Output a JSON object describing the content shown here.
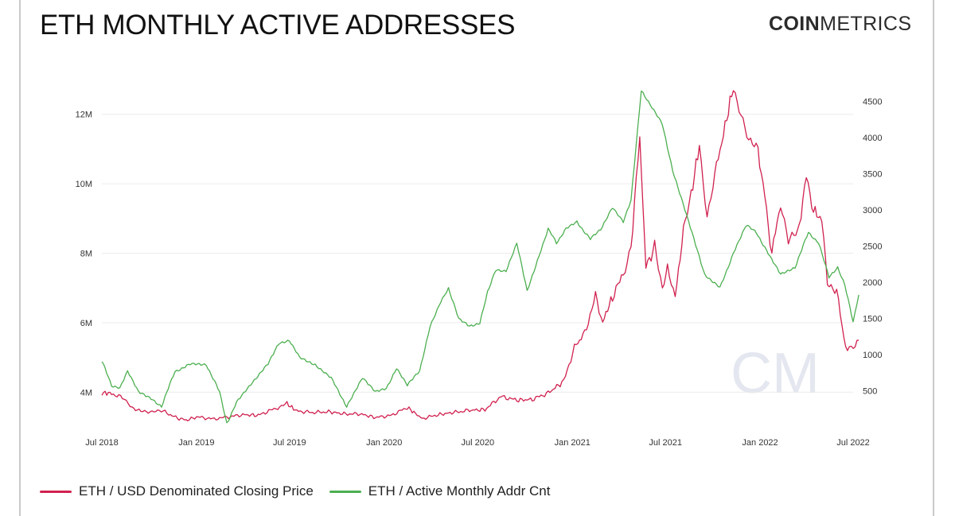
{
  "title": "ETH MONTHLY ACTIVE ADDRESSES",
  "brand": {
    "bold": "COIN",
    "light": "METRICS"
  },
  "watermark": "CM",
  "legend": {
    "price_label": "ETH / USD Denominated Closing Price",
    "addr_label": "ETH / Active Monthly Addr Cnt"
  },
  "colors": {
    "price": "#d0214f",
    "addresses": "#4caf50",
    "grid": "#ececec",
    "watermark": "#e4e7ef"
  },
  "chart_data": {
    "type": "line",
    "title": "ETH MONTHLY ACTIVE ADDRESSES",
    "xlabel": "",
    "x_ticks": [
      "Jul 2018",
      "Jan 2019",
      "Jul 2019",
      "Jan 2020",
      "Jul 2020",
      "Jan 2021",
      "Jul 2021",
      "Jan 2022",
      "Jul 2022"
    ],
    "y_left": {
      "ticks": [
        "4M",
        "6M",
        "8M",
        "10M",
        "12M"
      ],
      "tick_values": [
        4000000,
        6000000,
        8000000,
        10000000,
        12000000
      ],
      "range": [
        3000000,
        13000000
      ]
    },
    "y_right": {
      "ticks": [
        "500",
        "1000",
        "1500",
        "2000",
        "2500",
        "3000",
        "3500",
        "4000",
        "4500"
      ],
      "tick_values": [
        500,
        1000,
        1500,
        2000,
        2500,
        3000,
        3500,
        4000,
        4500
      ],
      "range": [
        0,
        4800
      ]
    },
    "grid": true,
    "legend_position": "bottom-left",
    "series": [
      {
        "name": "ETH / USD Denominated Closing Price",
        "axis": "right",
        "color": "#d0214f",
        "points": [
          [
            "2018-07-01",
            470
          ],
          [
            "2018-07-20",
            465
          ],
          [
            "2018-08-10",
            400
          ],
          [
            "2018-08-25",
            290
          ],
          [
            "2018-09-15",
            210
          ],
          [
            "2018-10-10",
            220
          ],
          [
            "2018-11-01",
            205
          ],
          [
            "2018-11-25",
            120
          ],
          [
            "2018-12-15",
            95
          ],
          [
            "2019-01-01",
            140
          ],
          [
            "2019-02-01",
            110
          ],
          [
            "2019-03-01",
            135
          ],
          [
            "2019-04-01",
            170
          ],
          [
            "2019-05-01",
            160
          ],
          [
            "2019-06-01",
            250
          ],
          [
            "2019-06-26",
            320
          ],
          [
            "2019-07-15",
            220
          ],
          [
            "2019-08-15",
            200
          ],
          [
            "2019-09-15",
            210
          ],
          [
            "2019-10-15",
            180
          ],
          [
            "2019-11-15",
            180
          ],
          [
            "2019-12-15",
            130
          ],
          [
            "2020-01-15",
            160
          ],
          [
            "2020-02-15",
            270
          ],
          [
            "2020-03-15",
            115
          ],
          [
            "2020-04-15",
            170
          ],
          [
            "2020-05-15",
            200
          ],
          [
            "2020-06-15",
            230
          ],
          [
            "2020-07-15",
            240
          ],
          [
            "2020-08-15",
            420
          ],
          [
            "2020-09-15",
            370
          ],
          [
            "2020-10-15",
            380
          ],
          [
            "2020-11-15",
            470
          ],
          [
            "2020-12-15",
            630
          ],
          [
            "2021-01-05",
            1100
          ],
          [
            "2021-01-25",
            1300
          ],
          [
            "2021-02-15",
            1800
          ],
          [
            "2021-03-01",
            1450
          ],
          [
            "2021-03-20",
            1800
          ],
          [
            "2021-04-10",
            2100
          ],
          [
            "2021-04-25",
            2500
          ],
          [
            "2021-05-12",
            4000
          ],
          [
            "2021-05-24",
            2200
          ],
          [
            "2021-06-10",
            2500
          ],
          [
            "2021-06-25",
            1850
          ],
          [
            "2021-07-05",
            2250
          ],
          [
            "2021-07-20",
            1800
          ],
          [
            "2021-08-05",
            2700
          ],
          [
            "2021-08-20",
            3200
          ],
          [
            "2021-09-05",
            3900
          ],
          [
            "2021-09-20",
            2900
          ],
          [
            "2021-10-05",
            3500
          ],
          [
            "2021-10-25",
            4150
          ],
          [
            "2021-11-10",
            4700
          ],
          [
            "2021-11-25",
            4350
          ],
          [
            "2021-12-10",
            4000
          ],
          [
            "2021-12-28",
            3800
          ],
          [
            "2022-01-10",
            3200
          ],
          [
            "2022-01-24",
            2400
          ],
          [
            "2022-02-10",
            3100
          ],
          [
            "2022-02-25",
            2600
          ],
          [
            "2022-03-15",
            2650
          ],
          [
            "2022-04-01",
            3450
          ],
          [
            "2022-04-15",
            3000
          ],
          [
            "2022-05-01",
            2850
          ],
          [
            "2022-05-12",
            2000
          ],
          [
            "2022-05-30",
            1900
          ],
          [
            "2022-06-13",
            1200
          ],
          [
            "2022-06-20",
            1100
          ],
          [
            "2022-07-05",
            1150
          ],
          [
            "2022-07-12",
            1200
          ]
        ]
      },
      {
        "name": "ETH / Active Monthly Addr Cnt",
        "axis": "left",
        "color": "#4caf50",
        "points": [
          [
            "2018-07-01",
            4900000
          ],
          [
            "2018-07-20",
            4200000
          ],
          [
            "2018-08-05",
            4100000
          ],
          [
            "2018-08-20",
            4600000
          ],
          [
            "2018-09-10",
            4000000
          ],
          [
            "2018-10-05",
            3800000
          ],
          [
            "2018-10-25",
            3600000
          ],
          [
            "2018-11-20",
            4600000
          ],
          [
            "2018-12-20",
            4800000
          ],
          [
            "2019-01-20",
            4800000
          ],
          [
            "2019-02-15",
            4000000
          ],
          [
            "2019-03-01",
            3100000
          ],
          [
            "2019-03-20",
            3700000
          ],
          [
            "2019-04-20",
            4300000
          ],
          [
            "2019-05-20",
            4800000
          ],
          [
            "2019-06-10",
            5400000
          ],
          [
            "2019-07-01",
            5500000
          ],
          [
            "2019-07-20",
            5000000
          ],
          [
            "2019-08-20",
            4800000
          ],
          [
            "2019-09-20",
            4400000
          ],
          [
            "2019-10-20",
            3600000
          ],
          [
            "2019-11-20",
            4400000
          ],
          [
            "2019-12-15",
            4000000
          ],
          [
            "2020-01-05",
            4100000
          ],
          [
            "2020-01-25",
            4700000
          ],
          [
            "2020-02-15",
            4200000
          ],
          [
            "2020-03-10",
            4600000
          ],
          [
            "2020-03-30",
            5900000
          ],
          [
            "2020-04-20",
            6600000
          ],
          [
            "2020-05-05",
            7000000
          ],
          [
            "2020-05-25",
            6100000
          ],
          [
            "2020-06-15",
            5900000
          ],
          [
            "2020-07-05",
            6000000
          ],
          [
            "2020-07-20",
            6900000
          ],
          [
            "2020-08-05",
            7500000
          ],
          [
            "2020-08-25",
            7500000
          ],
          [
            "2020-09-15",
            8300000
          ],
          [
            "2020-10-05",
            6900000
          ],
          [
            "2020-10-25",
            7800000
          ],
          [
            "2020-11-15",
            8700000
          ],
          [
            "2020-12-01",
            8300000
          ],
          [
            "2020-12-20",
            8700000
          ],
          [
            "2021-01-10",
            8900000
          ],
          [
            "2021-02-05",
            8400000
          ],
          [
            "2021-02-25",
            8700000
          ],
          [
            "2021-03-20",
            9300000
          ],
          [
            "2021-04-10",
            8900000
          ],
          [
            "2021-04-25",
            9500000
          ],
          [
            "2021-05-15",
            12700000
          ],
          [
            "2021-06-05",
            12200000
          ],
          [
            "2021-06-25",
            11700000
          ],
          [
            "2021-07-15",
            10400000
          ],
          [
            "2021-08-15",
            8900000
          ],
          [
            "2021-09-15",
            7400000
          ],
          [
            "2021-10-15",
            7000000
          ],
          [
            "2021-11-10",
            8000000
          ],
          [
            "2021-12-05",
            8800000
          ],
          [
            "2021-12-25",
            8600000
          ],
          [
            "2022-01-20",
            7900000
          ],
          [
            "2022-02-10",
            7400000
          ],
          [
            "2022-03-10",
            7600000
          ],
          [
            "2022-04-05",
            8600000
          ],
          [
            "2022-04-25",
            8300000
          ],
          [
            "2022-05-15",
            7300000
          ],
          [
            "2022-06-01",
            7600000
          ],
          [
            "2022-06-15",
            7100000
          ],
          [
            "2022-07-01",
            6000000
          ],
          [
            "2022-07-12",
            6800000
          ]
        ]
      }
    ]
  }
}
